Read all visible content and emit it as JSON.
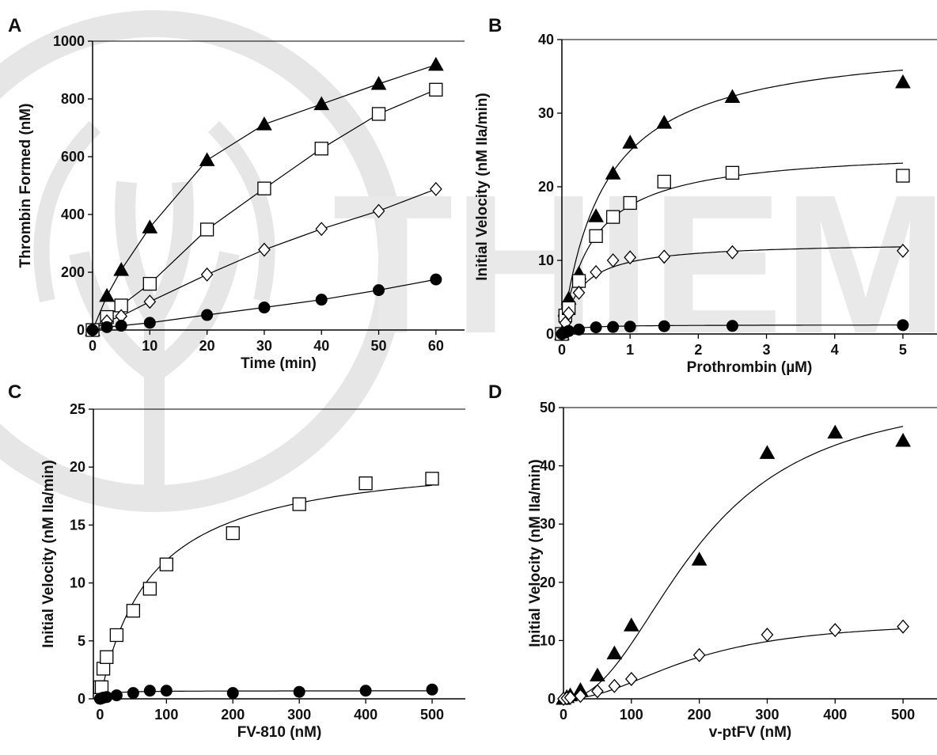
{
  "watermark": {
    "text": "THIEME"
  },
  "chart_data": [
    {
      "panel": "A",
      "type": "scatter",
      "xlabel": "Time (min)",
      "ylabel": "Thrombin Formed (nM)",
      "xlim": [
        0,
        65
      ],
      "ylim": [
        0,
        1000
      ],
      "xticks": [
        0,
        10,
        20,
        30,
        40,
        50,
        60
      ],
      "yticks": [
        0,
        200,
        400,
        600,
        800,
        1000
      ],
      "grid": false,
      "series": [
        {
          "marker": "filled-triangle",
          "fit": "connect",
          "x": [
            0,
            2.5,
            5,
            10,
            20,
            30,
            40,
            50,
            60
          ],
          "y": [
            0,
            118,
            208,
            355,
            588,
            712,
            782,
            852,
            918
          ]
        },
        {
          "marker": "open-square",
          "fit": "connect",
          "x": [
            0,
            2.5,
            5,
            10,
            20,
            30,
            40,
            50,
            60
          ],
          "y": [
            0,
            45,
            85,
            160,
            348,
            490,
            628,
            748,
            832
          ]
        },
        {
          "marker": "open-diamond",
          "fit": "connect",
          "x": [
            0,
            2.5,
            5,
            10,
            20,
            30,
            40,
            50,
            60
          ],
          "y": [
            0,
            30,
            48,
            98,
            192,
            278,
            350,
            412,
            488
          ]
        },
        {
          "marker": "filled-circle",
          "fit": "connect",
          "x": [
            0,
            2.5,
            5,
            10,
            20,
            30,
            40,
            50,
            60
          ],
          "y": [
            0,
            10,
            15,
            25,
            52,
            78,
            105,
            138,
            175
          ]
        }
      ]
    },
    {
      "panel": "B",
      "type": "scatter",
      "xlabel": "Prothrombin (µM)",
      "ylabel": "Initial Velocity (nM IIa/min)",
      "xlim": [
        0,
        5.5
      ],
      "ylim": [
        0,
        40
      ],
      "xticks": [
        0,
        1,
        2,
        3,
        4,
        5
      ],
      "yticks": [
        0,
        10,
        20,
        30,
        40
      ],
      "grid": false,
      "series": [
        {
          "marker": "filled-triangle",
          "fit": "hyperbolic",
          "vmax": 40.3,
          "k": 0.62,
          "x": [
            0,
            0.05,
            0.1,
            0.25,
            0.5,
            0.75,
            1.0,
            1.5,
            2.5,
            5.0
          ],
          "y": [
            0,
            3.2,
            4.8,
            8.2,
            16.0,
            21.8,
            26.0,
            28.7,
            32.2,
            34.2
          ]
        },
        {
          "marker": "open-square",
          "fit": "hyperbolic",
          "vmax": 25.3,
          "k": 0.45,
          "x": [
            0,
            0.05,
            0.1,
            0.25,
            0.5,
            0.75,
            1.0,
            1.5,
            2.5,
            5.0
          ],
          "y": [
            0,
            2.5,
            3.5,
            7.2,
            13.3,
            15.9,
            17.8,
            20.7,
            21.9,
            21.5
          ]
        },
        {
          "marker": "open-diamond",
          "fit": "hyperbolic",
          "vmax": 12.5,
          "k": 0.28,
          "x": [
            0,
            0.05,
            0.1,
            0.25,
            0.5,
            0.75,
            1.0,
            1.5,
            2.5,
            5.0
          ],
          "y": [
            0,
            1.5,
            2.8,
            5.6,
            8.4,
            10.0,
            10.4,
            10.5,
            11.1,
            11.3
          ]
        },
        {
          "marker": "filled-circle",
          "fit": "hyperbolic",
          "vmax": 1.25,
          "k": 0.15,
          "x": [
            0,
            0.05,
            0.1,
            0.25,
            0.5,
            0.75,
            1.0,
            1.5,
            2.5,
            5.0
          ],
          "y": [
            0,
            0.2,
            0.4,
            0.6,
            0.9,
            0.95,
            1.0,
            1.05,
            1.1,
            1.2
          ]
        }
      ]
    },
    {
      "panel": "C",
      "type": "scatter",
      "xlabel": "FV-810 (nM)",
      "ylabel": "Initial Velocity (nM IIa/min)",
      "xlim": [
        -10,
        550
      ],
      "ylim": [
        0,
        25
      ],
      "xticks": [
        0,
        100,
        200,
        300,
        400,
        500
      ],
      "yticks": [
        0,
        5,
        10,
        15,
        20,
        25
      ],
      "grid": false,
      "series": [
        {
          "marker": "open-square",
          "fit": "hyperbolic",
          "vmax": 21.3,
          "k": 78,
          "x": [
            0,
            2.5,
            5,
            10,
            25,
            50,
            75,
            100,
            200,
            300,
            400,
            500
          ],
          "y": [
            1.0,
            1.0,
            2.6,
            3.6,
            5.5,
            7.6,
            9.5,
            11.6,
            14.3,
            16.8,
            18.6,
            19.0
          ]
        },
        {
          "marker": "filled-circle",
          "fit": "hyperbolic",
          "vmax": 0.7,
          "k": 8,
          "x": [
            0,
            2.5,
            5,
            10,
            25,
            50,
            75,
            100,
            200,
            300,
            400,
            500
          ],
          "y": [
            0,
            0.05,
            0.1,
            0.15,
            0.3,
            0.5,
            0.7,
            0.7,
            0.5,
            0.6,
            0.7,
            0.8
          ]
        }
      ]
    },
    {
      "panel": "D",
      "type": "scatter",
      "xlabel": "v-ptFV (nM)",
      "ylabel": "Initial Velocity (nM IIa/min)",
      "xlim": [
        0,
        550
      ],
      "ylim": [
        0,
        50
      ],
      "xticks": [
        0,
        100,
        200,
        300,
        400,
        500
      ],
      "yticks": [
        0,
        10,
        20,
        30,
        40,
        50
      ],
      "grid": false,
      "series": [
        {
          "marker": "filled-triangle",
          "fit": "sigmoidal",
          "vmax": 53,
          "k": 200,
          "n": 2.2,
          "x": [
            0,
            5,
            10,
            25,
            50,
            75,
            100,
            200,
            300,
            400,
            500
          ],
          "y": [
            0,
            0.3,
            0.6,
            1.5,
            4.0,
            7.8,
            12.6,
            23.9,
            42.2,
            45.7,
            44.3
          ]
        },
        {
          "marker": "open-diamond",
          "fit": "sigmoidal",
          "vmax": 13.6,
          "k": 190,
          "n": 2.1,
          "x": [
            0,
            5,
            10,
            25,
            50,
            75,
            100,
            200,
            300,
            400,
            500
          ],
          "y": [
            0,
            0.1,
            0.2,
            0.5,
            1.3,
            2.2,
            3.4,
            7.5,
            11.0,
            11.8,
            12.4
          ]
        }
      ]
    }
  ]
}
